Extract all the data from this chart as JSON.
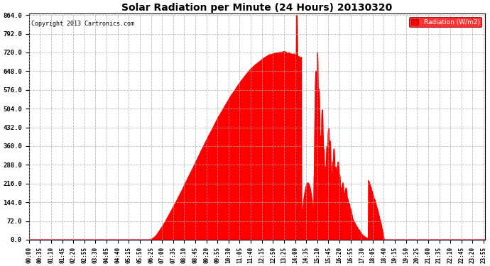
{
  "title": "Solar Radiation per Minute (24 Hours) 20130320",
  "copyright_text": "Copyright 2013 Cartronics.com",
  "ylabel": "Radiation (W/m2)",
  "fill_color": "#FF0000",
  "line_color": "#FF0000",
  "background_color": "#FFFFFF",
  "grid_color": "#AAAAAA",
  "yticks": [
    0.0,
    72.0,
    144.0,
    216.0,
    288.0,
    360.0,
    432.0,
    504.0,
    576.0,
    648.0,
    720.0,
    792.0,
    864.0
  ],
  "ymin": 0.0,
  "ymax": 864.0,
  "total_minutes": 1440,
  "xtick_interval": 35,
  "x_label_rotation": 90,
  "legend_box_color": "#FF0000",
  "legend_text_color": "#FFFFFF",
  "figwidth": 6.9,
  "figheight": 3.75,
  "dpi": 100
}
